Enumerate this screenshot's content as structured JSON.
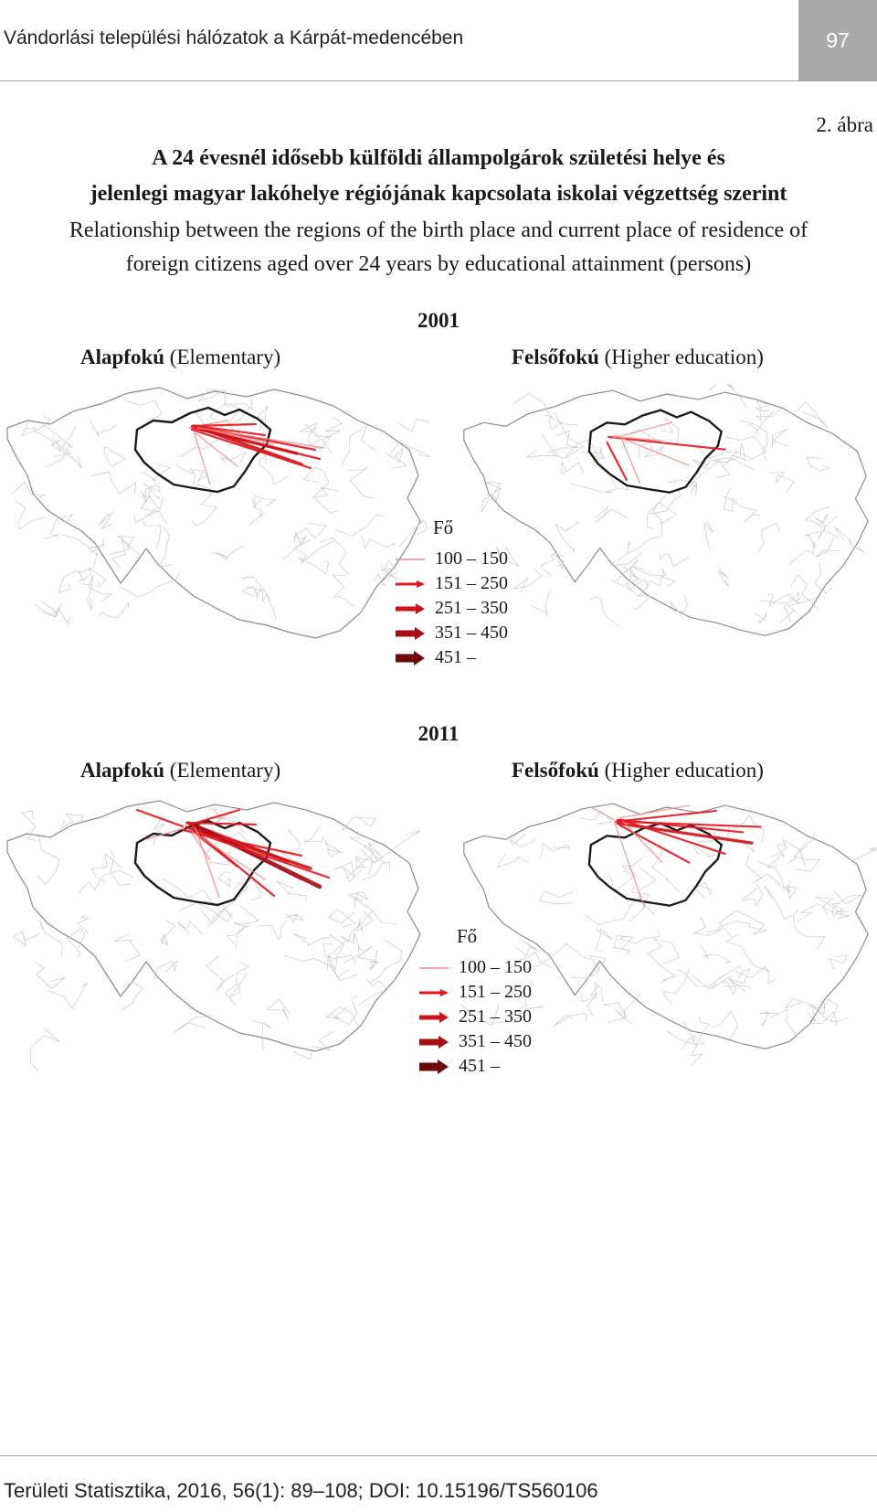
{
  "header": {
    "running_title": "Vándorlási települési hálózatok a Kárpát-medencében",
    "page_number": "97"
  },
  "figure": {
    "number": "2. ábra",
    "title_hu_line1": "A 24 évesnél idősebb külföldi állampolgárok születési helye és",
    "title_hu_line2": "jelenlegi magyar lakóhelye régiójának kapcsolata iskolai végzettség szerint",
    "title_en_line1": "Relationship between the regions of the birth place and current place of residence of",
    "title_en_line2": "foreign citizens aged over 24 years by educational attainment (persons)"
  },
  "panels": [
    {
      "year": "2001",
      "left": {
        "label_bold": "Alapfokú",
        "label_rest": " (Elementary)"
      },
      "right": {
        "label_bold": "Felsőfokú",
        "label_rest": " (Higher education)"
      }
    },
    {
      "year": "2011",
      "left": {
        "label_bold": "Alapfokú",
        "label_rest": " (Elementary)"
      },
      "right": {
        "label_bold": "Felsőfokú",
        "label_rest": " (Higher education)"
      }
    }
  ],
  "legend": {
    "title": "Fő",
    "classes": [
      {
        "label": "100 – 150",
        "color": "#f28a8a"
      },
      {
        "label": "151 – 250",
        "color": "#e8141b"
      },
      {
        "label": "251 – 350",
        "color": "#d01218"
      },
      {
        "label": "351 – 450",
        "color": "#a80d12"
      },
      {
        "label": "451 –",
        "color": "#6e080c"
      }
    ]
  },
  "footer": {
    "citation": "Területi Statisztika, 2016, 56(1): 89–108; DOI: 10.15196/TS560106"
  }
}
